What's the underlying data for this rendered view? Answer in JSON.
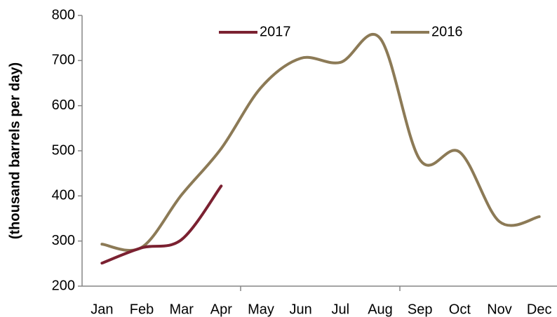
{
  "chart_data": {
    "type": "line",
    "y_label": "(thousand barrels per day)",
    "categories": [
      "Jan",
      "Feb",
      "Mar",
      "Apr",
      "May",
      "Jun",
      "Jul",
      "Aug",
      "Sep",
      "Oct",
      "Nov",
      "Dec"
    ],
    "series": [
      {
        "name": "2017",
        "color": "#7b2131",
        "values": [
          251,
          285,
          303,
          422,
          null,
          null,
          null,
          null,
          null,
          null,
          null,
          null
        ]
      },
      {
        "name": "2016",
        "color": "#8c7a56",
        "values": [
          293,
          286,
          402,
          505,
          640,
          705,
          696,
          749,
          480,
          497,
          343,
          354
        ]
      }
    ],
    "ylim": [
      200,
      800
    ],
    "yticks": [
      200,
      300,
      400,
      500,
      600,
      700,
      800
    ],
    "smooth": true,
    "legend": "upper center"
  }
}
